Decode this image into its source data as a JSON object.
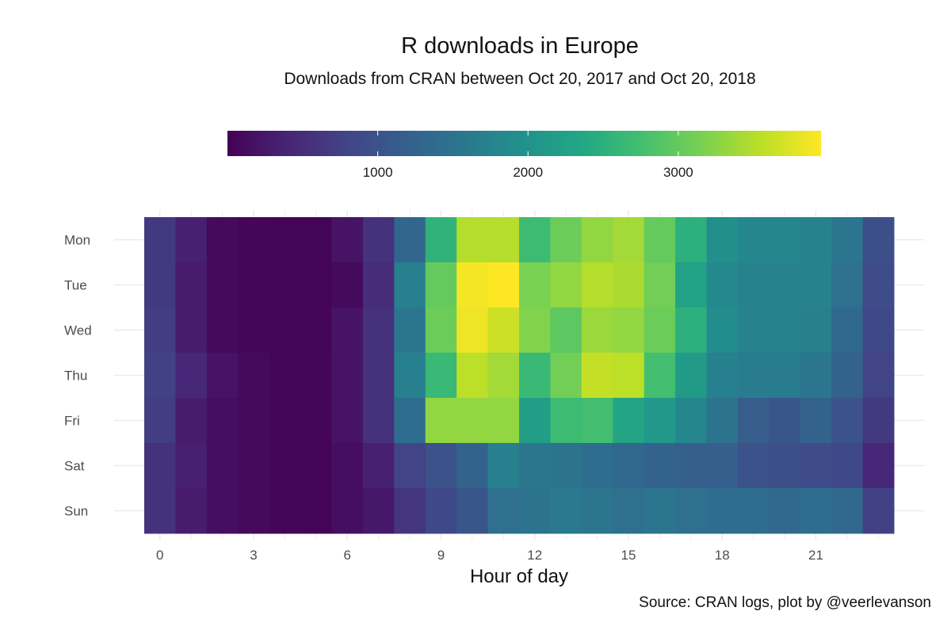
{
  "title": "R downloads in Europe",
  "subtitle": "Downloads from CRAN between Oct 20, 2017 and Oct 20, 2018",
  "caption": "Source: CRAN logs, plot by @veerlevanson",
  "chart_data": {
    "type": "heatmap",
    "title": "R downloads in Europe",
    "subtitle": "Downloads from CRAN between Oct 20, 2017 and Oct 20, 2018",
    "xlabel": "Hour of day",
    "ylabel": "",
    "x": [
      0,
      1,
      2,
      3,
      4,
      5,
      6,
      7,
      8,
      9,
      10,
      11,
      12,
      13,
      14,
      15,
      16,
      17,
      18,
      19,
      20,
      21,
      22,
      23
    ],
    "x_ticks": [
      0,
      3,
      6,
      9,
      12,
      15,
      18,
      21
    ],
    "y": [
      "Mon",
      "Tue",
      "Wed",
      "Thu",
      "Fri",
      "Sat",
      "Sun"
    ],
    "colorscale": "viridis",
    "color_range": [
      0,
      3950
    ],
    "legend_ticks": [
      1000,
      2000,
      3000
    ],
    "legend_position": "top",
    "grid": true,
    "values": [
      [
        650,
        350,
        100,
        50,
        30,
        30,
        200,
        550,
        1300,
        2550,
        3500,
        3500,
        2700,
        3050,
        3300,
        3400,
        3000,
        2500,
        1950,
        1800,
        1800,
        1750,
        1550,
        950
      ],
      [
        650,
        300,
        100,
        50,
        30,
        30,
        100,
        500,
        1700,
        3000,
        3900,
        3950,
        3150,
        3300,
        3500,
        3450,
        3100,
        2250,
        1850,
        1750,
        1750,
        1750,
        1450,
        900
      ],
      [
        700,
        300,
        100,
        50,
        30,
        30,
        200,
        550,
        1550,
        3050,
        3850,
        3650,
        3200,
        2950,
        3350,
        3300,
        3050,
        2500,
        1900,
        1750,
        1750,
        1700,
        1350,
        850
      ],
      [
        750,
        450,
        200,
        100,
        50,
        50,
        200,
        550,
        1700,
        2650,
        3550,
        3400,
        2650,
        3100,
        3600,
        3550,
        2750,
        2150,
        1700,
        1650,
        1650,
        1550,
        1250,
        800
      ],
      [
        700,
        300,
        150,
        100,
        50,
        50,
        200,
        550,
        1400,
        3300,
        3300,
        3300,
        2200,
        2700,
        2750,
        2300,
        2100,
        1800,
        1500,
        1150,
        1050,
        1250,
        1000,
        650
      ],
      [
        550,
        350,
        150,
        100,
        50,
        30,
        150,
        350,
        800,
        1000,
        1250,
        1700,
        1550,
        1500,
        1400,
        1350,
        1250,
        1200,
        1200,
        1000,
        950,
        900,
        850,
        450
      ],
      [
        550,
        300,
        150,
        100,
        50,
        30,
        150,
        250,
        600,
        850,
        1050,
        1450,
        1500,
        1600,
        1550,
        1450,
        1550,
        1450,
        1400,
        1400,
        1350,
        1400,
        1350,
        750
      ]
    ]
  }
}
